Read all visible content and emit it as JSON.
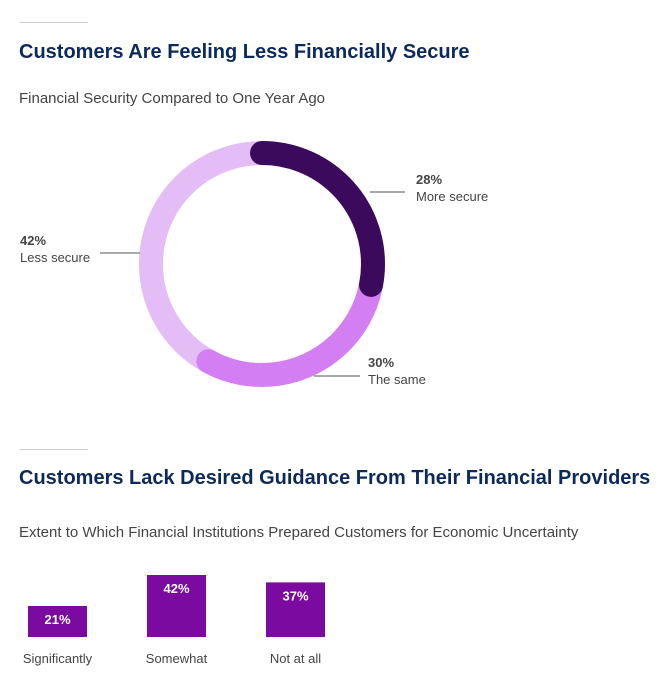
{
  "section1": {
    "title": "Customers Are Feeling Less Financially Secure",
    "subtitle": "Financial Security Compared to One Year Ago"
  },
  "section2": {
    "title": "Customers Lack Desired Guidance From Their Financial Providers",
    "subtitle": "Extent to Which Financial Institutions Prepared Customers for Economic Uncertainty"
  },
  "chart_data": [
    {
      "type": "pie",
      "title": "Financial Security Compared to One Year Ago",
      "labels": [
        "More secure",
        "The same",
        "Less secure"
      ],
      "values": [
        28,
        30,
        42
      ],
      "value_labels": [
        "28%",
        "30%",
        "42%"
      ],
      "colors": [
        "#3c0a5c",
        "#d47ef3",
        "#e4bdf6"
      ],
      "legend": "none"
    },
    {
      "type": "bar",
      "title": "Extent to Which Financial Institutions Prepared Customers for Economic Uncertainty",
      "categories": [
        "Significantly",
        "Somewhat",
        "Not at all"
      ],
      "values": [
        21,
        42,
        37
      ],
      "value_labels": [
        "21%",
        "42%",
        "37%"
      ],
      "color": "#7a0aa0",
      "ylim": [
        0,
        42
      ],
      "grid": false
    }
  ]
}
